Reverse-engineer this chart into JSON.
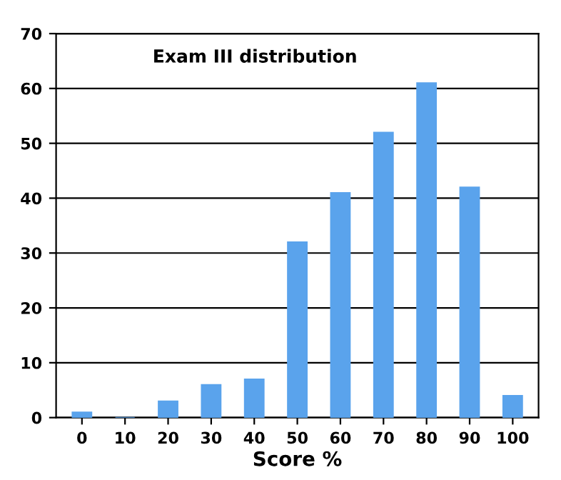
{
  "chart_data": {
    "type": "bar",
    "title": "Exam III distribution",
    "xlabel": "Score %",
    "categories": [
      "0",
      "10",
      "20",
      "30",
      "40",
      "50",
      "60",
      "70",
      "80",
      "90",
      "100"
    ],
    "values": [
      1,
      0,
      3,
      6,
      7,
      32,
      41,
      52,
      61,
      42,
      4
    ],
    "color": "#5aa3ec",
    "ylim": [
      0,
      70
    ],
    "yticks": [
      0,
      10,
      20,
      30,
      40,
      50,
      60,
      70
    ],
    "grid": "y",
    "legend": false
  }
}
